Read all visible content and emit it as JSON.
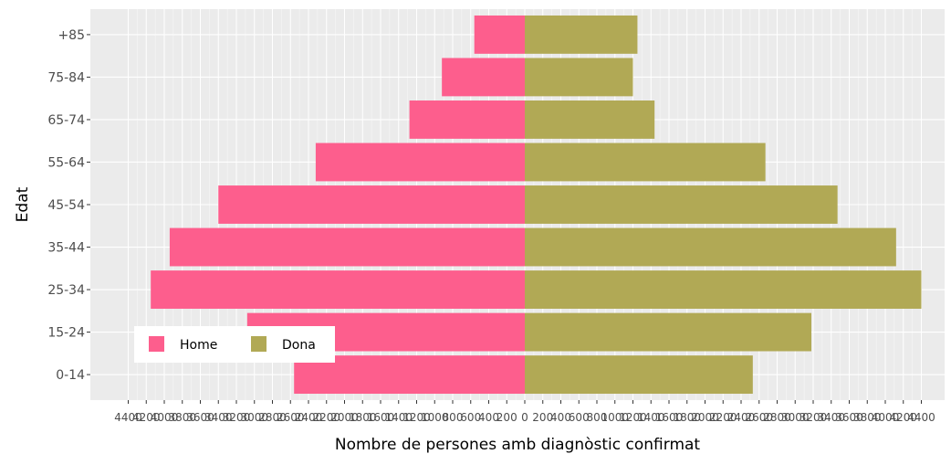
{
  "chart_data": {
    "type": "bar",
    "orientation": "horizontal-pyramid",
    "categories": [
      "0-14",
      "15-24",
      "25-34",
      "35-44",
      "45-54",
      "55-64",
      "65-74",
      "75-84",
      "+85"
    ],
    "series": [
      {
        "name": "Home",
        "values": [
          2560,
          3080,
          4150,
          3940,
          3400,
          2320,
          1280,
          920,
          560
        ]
      },
      {
        "name": "Dona",
        "values": [
          2530,
          3180,
          4400,
          4120,
          3470,
          2670,
          1440,
          1200,
          1250
        ]
      }
    ],
    "xlabel": "Nombre de persones amb diagnòstic confirmat",
    "ylabel": "Edat",
    "xlim": [
      -4500,
      4500
    ],
    "x_tick_labels": [
      "4400",
      "4200",
      "4000",
      "3800",
      "3600",
      "3400",
      "3200",
      "3000",
      "2800",
      "2600",
      "2400",
      "2200",
      "2000",
      "1800",
      "1600",
      "1400",
      "1200",
      "1000",
      "800",
      "600",
      "400",
      "200",
      "0",
      "200",
      "400",
      "600",
      "800",
      "1000",
      "1200",
      "1400",
      "1600",
      "1800",
      "2000",
      "2200",
      "2400",
      "2600",
      "2800",
      "3000",
      "3200",
      "3400",
      "3600",
      "3800",
      "4000",
      "4200",
      "4400"
    ],
    "x_ticks": [
      -4400,
      -4200,
      -4000,
      -3800,
      -3600,
      -3400,
      -3200,
      -3000,
      -2800,
      -2600,
      -2400,
      -2200,
      -2000,
      -1800,
      -1600,
      -1400,
      -1200,
      -1000,
      -800,
      -600,
      -400,
      -200,
      0,
      200,
      400,
      600,
      800,
      1000,
      1200,
      1400,
      1600,
      1800,
      2000,
      2200,
      2400,
      2600,
      2800,
      3000,
      3200,
      3400,
      3600,
      3800,
      4000,
      4200,
      4400
    ],
    "grid": true,
    "legend_position": "bottom-left",
    "colors": {
      "Home": "#fd5e8d",
      "Dona": "#b1a955",
      "panel": "#ebebeb",
      "grid": "#ffffff"
    }
  }
}
